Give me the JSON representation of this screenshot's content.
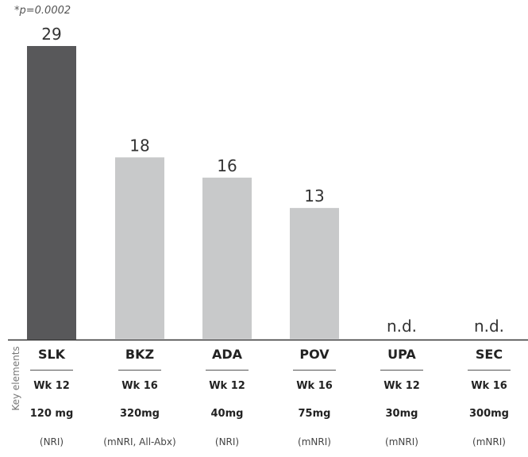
{
  "chart_data": {
    "type": "bar",
    "annotation": "*p=0.0002",
    "categories": [
      "SLK",
      "BKZ",
      "ADA",
      "POV",
      "UPA",
      "SEC"
    ],
    "values": [
      29,
      18,
      16,
      13,
      null,
      null
    ],
    "value_labels": [
      "29",
      "18",
      "16",
      "13",
      "n.d.",
      "n.d."
    ],
    "ylim": [
      0,
      29
    ],
    "bar_colors": [
      "#58585a",
      "#c8c9ca",
      "#c8c9ca",
      "#c8c9ca",
      "#c8c9ca",
      "#c8c9ca"
    ],
    "side_label": "Key elements",
    "table": {
      "weeks": [
        "Wk 12",
        "Wk 16",
        "Wk 12",
        "Wk 16",
        "Wk 12",
        "Wk 16"
      ],
      "doses": [
        "120 mg",
        "320mg",
        "40mg",
        "75mg",
        "30mg",
        "300mg"
      ],
      "methods": [
        "(NRI)",
        "(mNRI, All-Abx)",
        "(NRI)",
        "(mNRI)",
        "(mNRI)",
        "(mNRI)"
      ]
    }
  }
}
